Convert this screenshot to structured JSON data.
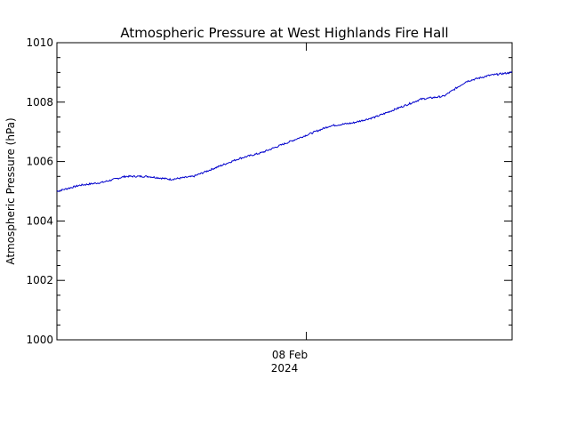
{
  "chart_data": {
    "type": "line",
    "title": "Atmospheric Pressure at West Highlands Fire Hall",
    "xlabel": "",
    "ylabel": "Atmospheric Pressure (hPa)",
    "ylim": [
      1000,
      1010
    ],
    "yticks": [
      "1000",
      "1002",
      "1004",
      "1006",
      "1008",
      "1010"
    ],
    "x_tick_label": [
      "08 Feb",
      "2024"
    ],
    "x_range_days": [
      0,
      1
    ],
    "x_tick_position": 0.548,
    "series": [
      {
        "color": "#0000cc",
        "x": [
          0.0,
          0.05,
          0.1,
          0.15,
          0.2,
          0.25,
          0.3,
          0.35,
          0.4,
          0.45,
          0.5,
          0.55,
          0.6,
          0.65,
          0.7,
          0.75,
          0.8,
          0.85,
          0.9,
          0.95,
          1.0
        ],
        "y": [
          1005.0,
          1005.2,
          1005.3,
          1005.5,
          1005.5,
          1005.4,
          1005.5,
          1005.8,
          1006.1,
          1006.3,
          1006.6,
          1006.9,
          1007.2,
          1007.3,
          1007.5,
          1007.8,
          1008.1,
          1008.2,
          1008.7,
          1008.9,
          1009.0
        ]
      }
    ]
  }
}
